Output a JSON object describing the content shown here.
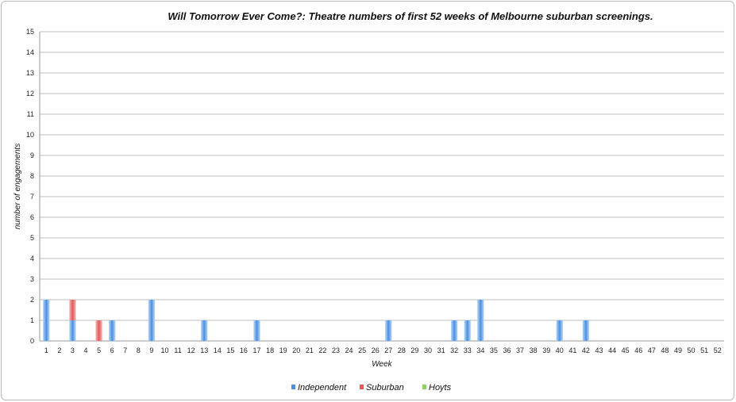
{
  "chart_data": {
    "type": "bar",
    "stacked": true,
    "title": "Will Tomorrow Ever Come?: Theatre numbers of first 52 weeks of Melbourne suburban screenings.",
    "xlabel": "Week",
    "ylabel": "number of engagements",
    "ylim": [
      0,
      15
    ],
    "yticks": [
      0,
      1,
      2,
      3,
      4,
      5,
      6,
      7,
      8,
      9,
      10,
      11,
      12,
      13,
      14,
      15
    ],
    "grid": true,
    "legend_position": "bottom-center",
    "categories": [
      "1",
      "2",
      "3",
      "4",
      "5",
      "6",
      "7",
      "8",
      "9",
      "10",
      "11",
      "12",
      "13",
      "14",
      "15",
      "16",
      "17",
      "18",
      "19",
      "20",
      "21",
      "22",
      "23",
      "24",
      "25",
      "26",
      "27",
      "28",
      "29",
      "30",
      "31",
      "32",
      "33",
      "34",
      "35",
      "36",
      "37",
      "38",
      "39",
      "40",
      "41",
      "42",
      "43",
      "44",
      "45",
      "46",
      "47",
      "48",
      "49",
      "50",
      "51",
      "52"
    ],
    "series": [
      {
        "name": "Independent",
        "color": "#4a90e2",
        "values": [
          2,
          0,
          1,
          0,
          0,
          1,
          0,
          0,
          2,
          0,
          0,
          0,
          1,
          0,
          0,
          0,
          1,
          0,
          0,
          0,
          0,
          0,
          0,
          0,
          0,
          0,
          1,
          0,
          0,
          0,
          0,
          1,
          1,
          2,
          0,
          0,
          0,
          0,
          0,
          1,
          0,
          1,
          0,
          0,
          0,
          0,
          0,
          0,
          0,
          0,
          0,
          0
        ]
      },
      {
        "name": "Suburban",
        "color": "#e05a5a",
        "values": [
          0,
          0,
          1,
          0,
          1,
          0,
          0,
          0,
          0,
          0,
          0,
          0,
          0,
          0,
          0,
          0,
          0,
          0,
          0,
          0,
          0,
          0,
          0,
          0,
          0,
          0,
          0,
          0,
          0,
          0,
          0,
          0,
          0,
          0,
          0,
          0,
          0,
          0,
          0,
          0,
          0,
          0,
          0,
          0,
          0,
          0,
          0,
          0,
          0,
          0,
          0,
          0
        ]
      },
      {
        "name": "Hoyts",
        "color": "#8fd45a",
        "values": [
          0,
          0,
          0,
          0,
          0,
          0,
          0,
          0,
          0,
          0,
          0,
          0,
          0,
          0,
          0,
          0,
          0,
          0,
          0,
          0,
          0,
          0,
          0,
          0,
          0,
          0,
          0,
          0,
          0,
          0,
          0,
          0,
          0,
          0,
          0,
          0,
          0,
          0,
          0,
          0,
          0,
          0,
          0,
          0,
          0,
          0,
          0,
          0,
          0,
          0,
          0,
          0
        ]
      }
    ]
  }
}
